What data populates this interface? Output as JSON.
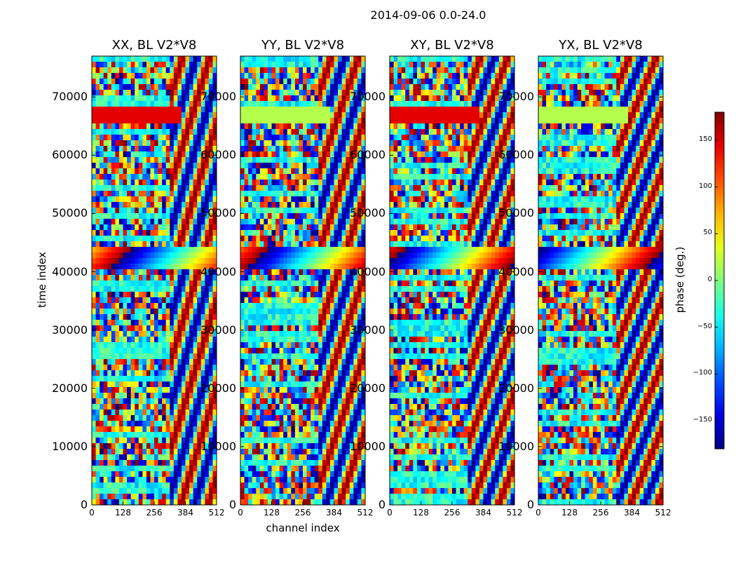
{
  "chart_data": {
    "type": "heatmap",
    "suptitle": "2014-09-06 0.0-24.0",
    "xlabel": "channel index",
    "ylabel": "time index",
    "xlim": [
      0,
      512
    ],
    "ylim": [
      0,
      77000
    ],
    "xticks": [
      "0",
      "128",
      "256",
      "384",
      "512"
    ],
    "yticks": [
      "0",
      "10000",
      "20000",
      "30000",
      "40000",
      "50000",
      "60000",
      "70000"
    ],
    "panels": [
      {
        "title": "XX, BL V2*V8"
      },
      {
        "title": "YY, BL V2*V8"
      },
      {
        "title": "XY, BL V2*V8"
      },
      {
        "title": "YX, BL V2*V8"
      }
    ],
    "colorbar": {
      "label": "phase (deg.)",
      "range": [
        -180,
        180
      ],
      "ticks": [
        "150",
        "100",
        "50",
        "0",
        "−50",
        "−100",
        "−150"
      ],
      "colormap": "jet"
    }
  }
}
